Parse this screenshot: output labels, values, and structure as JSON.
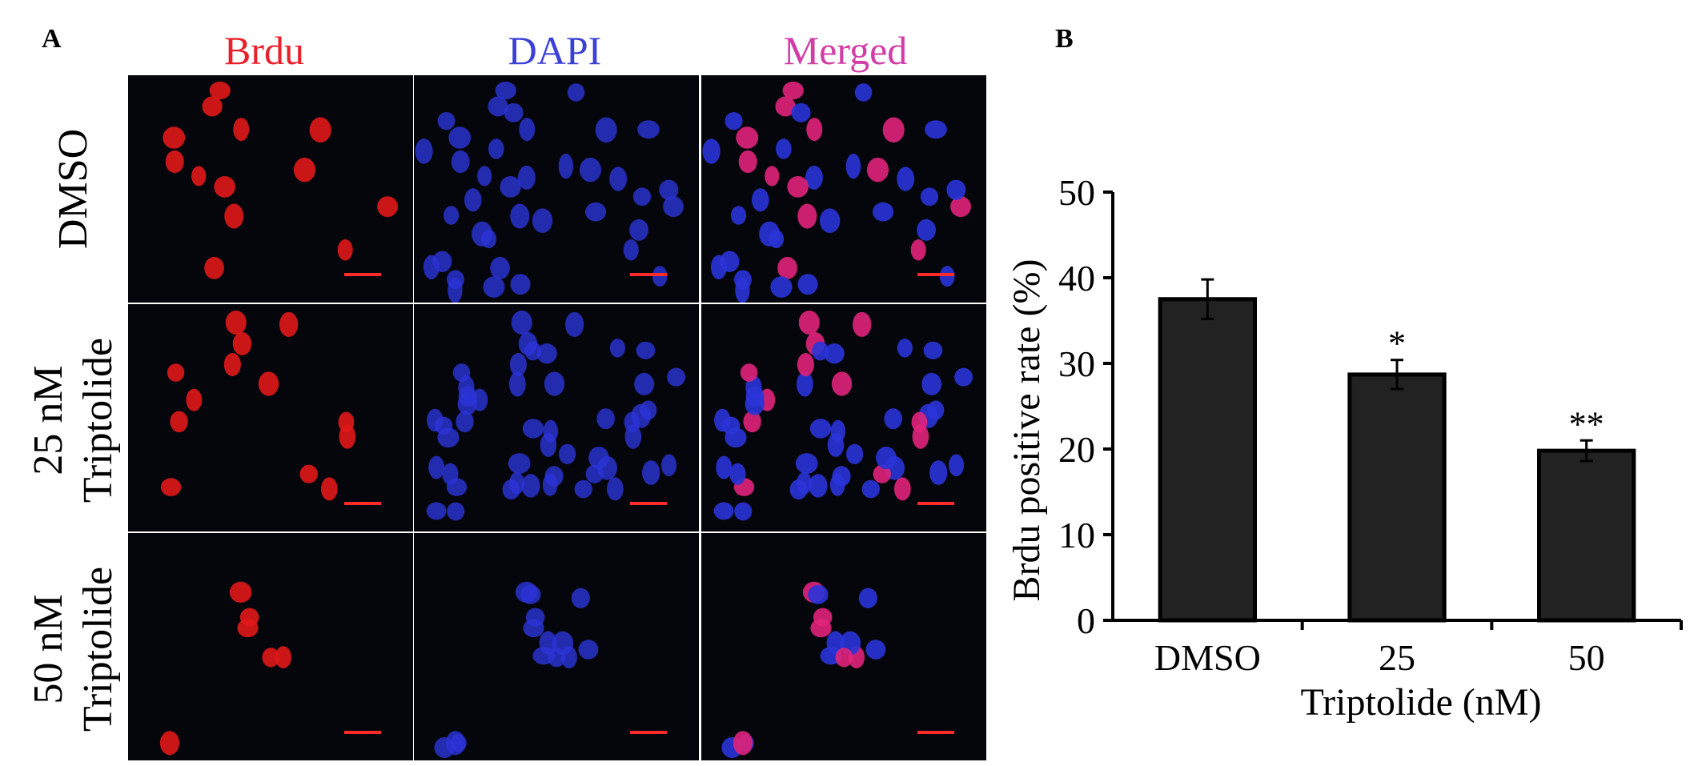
{
  "figure": {
    "panel_a_letter": "A",
    "panel_b_letter": "B",
    "columns": [
      {
        "label": "Brdu",
        "color": "#e8202a"
      },
      {
        "label": "DAPI",
        "color": "#3a3fd6"
      },
      {
        "label": "Merged",
        "color": "#d13ca7"
      }
    ],
    "rows": [
      {
        "line1": "DMSO",
        "line2": ""
      },
      {
        "line1": "25 nM",
        "line2": "Triptolide"
      },
      {
        "line1": "50 nM",
        "line2": "Triptolide"
      }
    ],
    "stain_colors": {
      "brdu": "#e01818",
      "dapi": "#2a34d8",
      "merged": "#e0247a",
      "scale_bar": "#ff2a2a",
      "cell_background": "#05050c"
    }
  },
  "chart_data": {
    "type": "bar",
    "categories": [
      "DMSO",
      "25",
      "50"
    ],
    "values": [
      37.5,
      28.7,
      19.8
    ],
    "errors": [
      2.3,
      1.7,
      1.2
    ],
    "significance": [
      "",
      "*",
      "**"
    ],
    "title": "",
    "xlabel": "Triptolide (nM)",
    "ylabel": "Brdu positive rate (%)",
    "ylim": [
      0,
      50
    ],
    "yticks": [
      0,
      10,
      20,
      30,
      40,
      50
    ],
    "grid": false,
    "bar_color": "#222222"
  }
}
